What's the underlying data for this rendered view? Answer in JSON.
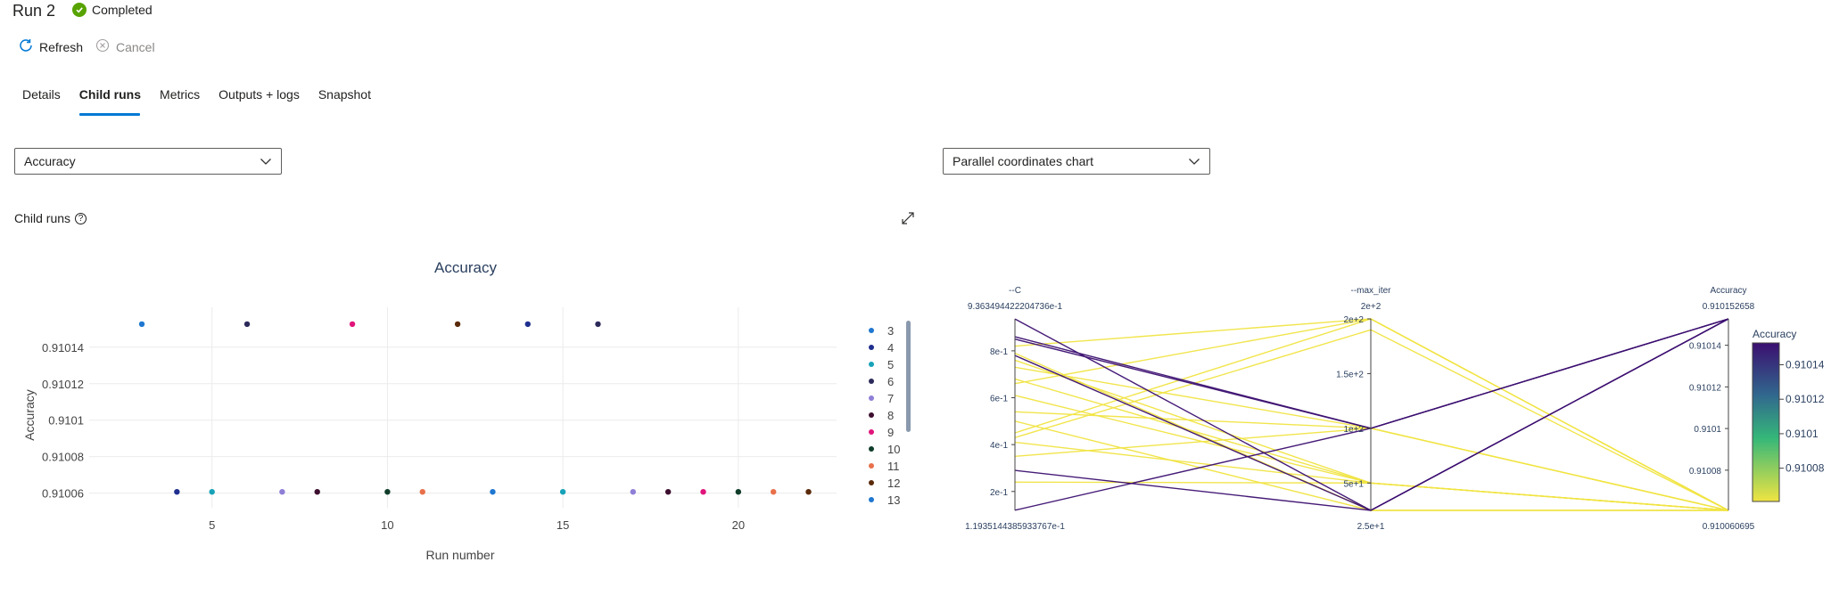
{
  "header": {
    "title": "Run 2",
    "status": "Completed",
    "status_color": "#57a300"
  },
  "toolbar": {
    "refresh_label": "Refresh",
    "cancel_label": "Cancel"
  },
  "tabs": [
    {
      "label": "Details",
      "active": false
    },
    {
      "label": "Child runs",
      "active": true
    },
    {
      "label": "Metrics",
      "active": false
    },
    {
      "label": "Outputs + logs",
      "active": false
    },
    {
      "label": "Snapshot",
      "active": false
    }
  ],
  "metric_dropdown": {
    "value": "Accuracy"
  },
  "chart_type_dropdown": {
    "value": "Parallel coordinates chart"
  },
  "child_runs": {
    "label": "Child runs",
    "help_icon": "question-circle-icon",
    "expand_icon": "expand-icon"
  },
  "chart_data": [
    {
      "type": "scatter",
      "title": "Accuracy",
      "xlabel": "Run number",
      "ylabel": "Accuracy",
      "xlim": [
        1.5,
        22.8
      ],
      "ylim": [
        0.910052,
        0.910157
      ],
      "xticks": [
        5,
        10,
        15,
        20
      ],
      "yticks": [
        0.91006,
        0.91008,
        0.9101,
        0.91012,
        0.91014
      ],
      "ytick_labels": [
        "0.91006",
        "0.91008",
        "0.9101",
        "0.91012",
        "0.91014"
      ],
      "grid": true,
      "legend_position": "right",
      "points": [
        {
          "run": 3,
          "value": 0.910152658
        },
        {
          "run": 4,
          "value": 0.910060695
        },
        {
          "run": 5,
          "value": 0.910060695
        },
        {
          "run": 6,
          "value": 0.910152658
        },
        {
          "run": 7,
          "value": 0.910060695
        },
        {
          "run": 8,
          "value": 0.910060695
        },
        {
          "run": 9,
          "value": 0.910152658
        },
        {
          "run": 10,
          "value": 0.910060695
        },
        {
          "run": 11,
          "value": 0.910060695
        },
        {
          "run": 12,
          "value": 0.910152658
        },
        {
          "run": 13,
          "value": 0.910060695
        },
        {
          "run": 14,
          "value": 0.910152658
        },
        {
          "run": 15,
          "value": 0.910060695
        },
        {
          "run": 16,
          "value": 0.910152658
        },
        {
          "run": 17,
          "value": 0.910060695
        },
        {
          "run": 18,
          "value": 0.910060695
        },
        {
          "run": 19,
          "value": 0.910060695
        },
        {
          "run": 20,
          "value": 0.910060695
        },
        {
          "run": 21,
          "value": 0.910060695
        },
        {
          "run": 22,
          "value": 0.910060695
        }
      ],
      "run_colors": {
        "3": "#1f77d0",
        "4": "#1f2f8f",
        "5": "#17a2b8",
        "6": "#2c2a5a",
        "7": "#8f7fd6",
        "8": "#3d0f2f",
        "9": "#e0147a",
        "10": "#0f3d2a",
        "11": "#e8704a",
        "12": "#5a2a0a",
        "13": "#1f77d0",
        "14": "#1f2f8f",
        "15": "#17a2b8",
        "16": "#2c2a5a",
        "17": "#8f7fd6",
        "18": "#3d0f2f",
        "19": "#e0147a",
        "20": "#0f3d2a",
        "21": "#e8704a",
        "22": "#5a2a0a"
      },
      "legend": [
        "3",
        "4",
        "5",
        "6",
        "7",
        "8",
        "9",
        "10",
        "11",
        "12",
        "13"
      ]
    },
    {
      "type": "parallel_coordinates",
      "dimensions": [
        {
          "label": "--C",
          "max_label": "9.363494422204736e-1",
          "min_label": "1.1935144385933767e-1",
          "range": [
            0.11935144385933767,
            0.9363494422204736
          ],
          "ticks": [
            0.2,
            0.4,
            0.6,
            0.8
          ],
          "tick_labels": [
            "2e-1",
            "4e-1",
            "6e-1",
            "8e-1"
          ]
        },
        {
          "label": "--max_iter",
          "max_label": "2e+2",
          "min_label": "2.5e+1",
          "range": [
            25,
            200
          ],
          "ticks": [
            50,
            100,
            150,
            200
          ],
          "tick_labels": [
            "5e+1",
            "1e+2",
            "1.5e+2",
            "2e+2"
          ]
        },
        {
          "label": "Accuracy",
          "max_label": "0.910152658",
          "min_label": "0.910060695",
          "range": [
            0.910060695,
            0.910152658
          ],
          "ticks": [
            0.91008,
            0.9101,
            0.91012,
            0.91014
          ],
          "tick_labels": [
            "0.91008",
            "0.9101",
            "0.91012",
            "0.91014"
          ]
        }
      ],
      "colorbar": {
        "title": "Accuracy",
        "ticks": [
          "0.91014",
          "0.91012",
          "0.9101",
          "0.91008"
        ],
        "high_color": "#3b0f70",
        "low_color": "#f0e442"
      },
      "lines": [
        {
          "C": 0.936,
          "max_iter": 25,
          "accuracy": 0.910152658
        },
        {
          "C": 0.86,
          "max_iter": 100,
          "accuracy": 0.910152658
        },
        {
          "C": 0.85,
          "max_iter": 100,
          "accuracy": 0.910152658
        },
        {
          "C": 0.78,
          "max_iter": 25,
          "accuracy": 0.910152658
        },
        {
          "C": 0.29,
          "max_iter": 25,
          "accuracy": 0.910152658
        },
        {
          "C": 0.12,
          "max_iter": 100,
          "accuracy": 0.910152658
        },
        {
          "C": 0.82,
          "max_iter": 200,
          "accuracy": 0.910060695
        },
        {
          "C": 0.79,
          "max_iter": 25,
          "accuracy": 0.910060695
        },
        {
          "C": 0.76,
          "max_iter": 50,
          "accuracy": 0.910060695
        },
        {
          "C": 0.73,
          "max_iter": 100,
          "accuracy": 0.910060695
        },
        {
          "C": 0.68,
          "max_iter": 50,
          "accuracy": 0.910060695
        },
        {
          "C": 0.66,
          "max_iter": 200,
          "accuracy": 0.910060695
        },
        {
          "C": 0.61,
          "max_iter": 50,
          "accuracy": 0.910060695
        },
        {
          "C": 0.54,
          "max_iter": 100,
          "accuracy": 0.910060695
        },
        {
          "C": 0.5,
          "max_iter": 25,
          "accuracy": 0.910060695
        },
        {
          "C": 0.45,
          "max_iter": 200,
          "accuracy": 0.910060695
        },
        {
          "C": 0.43,
          "max_iter": 190,
          "accuracy": 0.910060695
        },
        {
          "C": 0.41,
          "max_iter": 50,
          "accuracy": 0.910060695
        },
        {
          "C": 0.35,
          "max_iter": 100,
          "accuracy": 0.910060695
        },
        {
          "C": 0.24,
          "max_iter": 50,
          "accuracy": 0.910060695
        }
      ]
    }
  ]
}
